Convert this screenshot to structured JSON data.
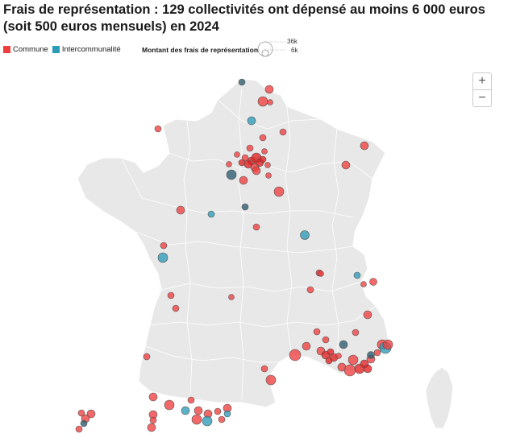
{
  "title": "Frais de représentation : 129 collectivités ont dépensé au moins 6 000 euros (soit 500 euros mensuels) en 2024",
  "legend": {
    "items": [
      {
        "label": "Commune",
        "color": "#f03e3e"
      },
      {
        "label": "Intercommunalité",
        "color": "#2b9bb8"
      }
    ],
    "size_title": "Montant des frais de représentation",
    "size_max": "36k",
    "size_min": "6k"
  },
  "zoom": {
    "in": "+",
    "out": "−"
  },
  "colors": {
    "commune": "#f03e3e",
    "intercommunalite": "#2b9bb8",
    "land": "#e8e8e8",
    "border": "#ffffff"
  }
}
